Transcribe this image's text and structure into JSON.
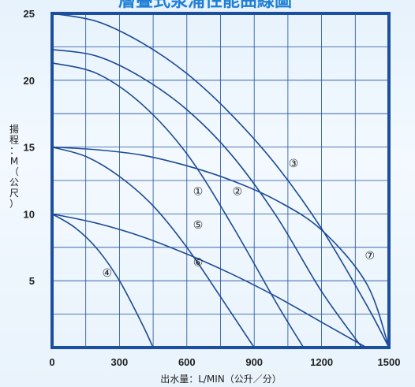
{
  "chart_data": {
    "type": "line",
    "title": "層疊式泵浦性能曲線圖",
    "xlabel": "出水量：L/MIN（公升／分）",
    "ylabel": "揚程：M（公尺）",
    "xlim": [
      0,
      1500
    ],
    "ylim": [
      0,
      25
    ],
    "x_ticks": [
      "0",
      "300",
      "600",
      "900",
      "1200",
      "1500"
    ],
    "y_ticks": [
      "5",
      "10",
      "15",
      "20",
      "25"
    ],
    "grid": true,
    "series": [
      {
        "name": "①",
        "x": [
          0,
          200,
          400,
          600,
          800,
          1000,
          1120
        ],
        "y": [
          21.3,
          20.5,
          18.2,
          14.5,
          9.2,
          3.3,
          0
        ]
      },
      {
        "name": "②",
        "x": [
          0,
          200,
          400,
          600,
          800,
          1000,
          1200,
          1380
        ],
        "y": [
          22.3,
          21.8,
          20.2,
          17.8,
          14.4,
          9.8,
          4.2,
          0
        ]
      },
      {
        "name": "③",
        "x": [
          0,
          200,
          400,
          600,
          800,
          1000,
          1200,
          1400,
          1500
        ],
        "y": [
          25,
          24.4,
          22.8,
          20.5,
          17.4,
          13.6,
          8.9,
          3.2,
          0
        ]
      },
      {
        "name": "④",
        "x": [
          0,
          100,
          200,
          300,
          400,
          450
        ],
        "y": [
          10,
          9.0,
          7.4,
          5.0,
          1.8,
          0
        ]
      },
      {
        "name": "⑤",
        "x": [
          0,
          150,
          300,
          450,
          600,
          750,
          900
        ],
        "y": [
          15,
          14.3,
          12.8,
          10.6,
          7.5,
          3.8,
          0
        ]
      },
      {
        "name": "⑥",
        "x": [
          0,
          200,
          400,
          600,
          800,
          1000,
          1200,
          1400
        ],
        "y": [
          10,
          9.3,
          8.3,
          7.0,
          5.5,
          3.8,
          1.9,
          0
        ]
      },
      {
        "name": "⑦",
        "x": [
          0,
          200,
          400,
          600,
          800,
          1000,
          1200,
          1400,
          1500
        ],
        "y": [
          15,
          14.8,
          14.4,
          13.6,
          12.5,
          11.0,
          8.8,
          4.8,
          0
        ]
      }
    ],
    "labels": [
      {
        "text": "①",
        "x": 650,
        "y": 11.7
      },
      {
        "text": "②",
        "x": 825,
        "y": 11.7
      },
      {
        "text": "③",
        "x": 1075,
        "y": 13.8
      },
      {
        "text": "④",
        "x": 245,
        "y": 5.6
      },
      {
        "text": "⑤",
        "x": 650,
        "y": 9.2
      },
      {
        "text": "⑥",
        "x": 650,
        "y": 6.4
      },
      {
        "text": "⑦",
        "x": 1415,
        "y": 6.9
      }
    ]
  }
}
